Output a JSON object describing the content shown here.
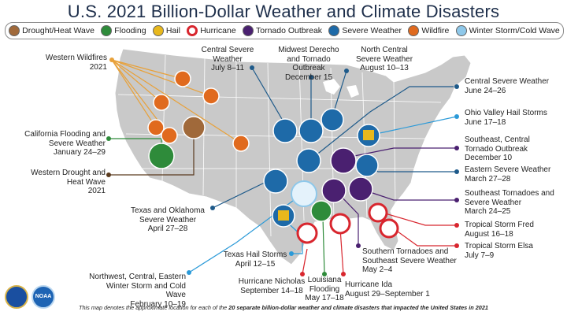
{
  "title": "U.S. 2021 Billion-Dollar Weather and Climate Disasters",
  "legend": [
    {
      "label": "Drought/Heat Wave",
      "icon": "drought-icon",
      "color": "#a0693a"
    },
    {
      "label": "Flooding",
      "icon": "flooding-icon",
      "color": "#2e8b3a"
    },
    {
      "label": "Hail",
      "icon": "hail-icon",
      "color": "#e8b81c"
    },
    {
      "label": "Hurricane",
      "icon": "hurricane-icon",
      "color": "#d8262e"
    },
    {
      "label": "Tornado Outbreak",
      "icon": "tornado-icon",
      "color": "#4a2070"
    },
    {
      "label": "Severe Weather",
      "icon": "severe-weather-icon",
      "color": "#1e6aa8"
    },
    {
      "label": "Wildfire",
      "icon": "wildfire-icon",
      "color": "#e06a1e"
    },
    {
      "label": "Winter Storm/Cold Wave",
      "icon": "winter-storm-icon",
      "color": "#8ec8ea"
    }
  ],
  "events": {
    "western_wildfires": {
      "name": "Western Wildfires",
      "date": "2021"
    },
    "california_flooding": {
      "name": "California Flooding and Severe Weather",
      "date": "January 24–29"
    },
    "western_drought": {
      "name": "Western Drought and Heat Wave",
      "date": "2021"
    },
    "texas_oklahoma": {
      "name": "Texas and Oklahoma Severe Weather",
      "date": "April 27–28"
    },
    "winter_storm": {
      "name": "Northwest, Central, Eastern Winter Storm and Cold Wave",
      "date": "February 10–19"
    },
    "texas_hail": {
      "name": "Texas Hail Storms",
      "date": "April 12–15"
    },
    "nicholas": {
      "name": "Hurricane Nicholas",
      "date": "September 14–18"
    },
    "louisiana_flooding": {
      "name": "Louisiana Flooding",
      "date": "May 17–18"
    },
    "ida": {
      "name": "Hurricane Ida",
      "date": "August 29–September 1"
    },
    "southern_tornadoes": {
      "name": "Southern Tornadoes and Southeast Severe Weather",
      "date": "May 2–4"
    },
    "central_severe_july": {
      "name": "Central Severe Weather",
      "date": "July 8–11"
    },
    "midwest_derecho": {
      "name": "Midwest Derecho and Tornado Outbreak",
      "date": "December 15"
    },
    "north_central": {
      "name": "North Central Severe Weather",
      "date": "August 10–13"
    },
    "central_severe_june": {
      "name": "Central Severe Weather",
      "date": "June 24–26"
    },
    "ohio_valley": {
      "name": "Ohio Valley Hail Storms",
      "date": "June 17–18"
    },
    "southeast_central_tornado": {
      "name": "Southeast, Central Tornado Outbreak",
      "date": "December 10"
    },
    "eastern_severe": {
      "name": "Eastern Severe Weather",
      "date": "March 27–28"
    },
    "southeast_tornadoes": {
      "name": "Southeast Tornadoes and Severe Weather",
      "date": "March 24–25"
    },
    "fred": {
      "name": "Tropical Storm Fred",
      "date": "August 16–18"
    },
    "elsa": {
      "name": "Tropical Storm Elsa",
      "date": "July 7–9"
    }
  },
  "footer": {
    "pre": "This map denotes the approximate location for each of the ",
    "bold": "20 separate billion-dollar weather and climate disasters that impacted the United States in 2021"
  },
  "seals": {
    "noaa": "NOAA"
  }
}
